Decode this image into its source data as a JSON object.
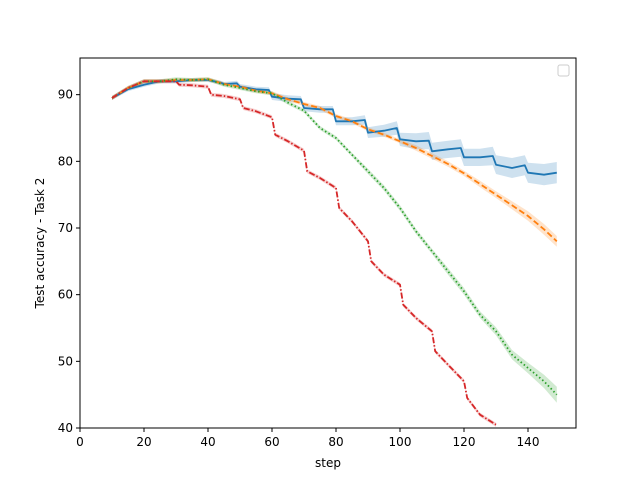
{
  "chart_data": {
    "type": "line",
    "title": "",
    "xlabel": "step",
    "ylabel": "Test accuracy - Task 2",
    "xlim": [
      0,
      155
    ],
    "ylim": [
      40,
      95.5
    ],
    "xticks": [
      0,
      20,
      40,
      60,
      80,
      100,
      120,
      140
    ],
    "yticks": [
      40,
      50,
      60,
      70,
      80,
      90
    ],
    "grid": false,
    "legend": {
      "position": "top-right",
      "entries": []
    },
    "series": [
      {
        "color": "#1f77b4",
        "dash": "solid",
        "x": [
          10,
          15,
          20,
          25,
          30,
          35,
          40,
          44,
          45,
          49,
          50,
          55,
          59,
          60,
          65,
          69,
          70,
          75,
          79,
          80,
          85,
          89,
          90,
          95,
          99,
          100,
          105,
          109,
          110,
          115,
          119,
          120,
          125,
          129,
          130,
          135,
          139,
          140,
          145,
          149
        ],
        "y": [
          89.5,
          90.8,
          91.5,
          92.0,
          92.0,
          92.2,
          92.2,
          91.8,
          91.6,
          91.7,
          91.2,
          90.8,
          90.7,
          89.7,
          89.4,
          89.3,
          88.0,
          87.8,
          87.8,
          86.0,
          86.0,
          86.2,
          84.3,
          84.6,
          85.0,
          83.3,
          83.0,
          83.1,
          81.5,
          81.8,
          82.0,
          80.6,
          80.6,
          80.8,
          79.5,
          79.0,
          79.4,
          78.3,
          78.0,
          78.3
        ],
        "band": [
          0.3,
          0.3,
          0.3,
          0.3,
          0.3,
          0.3,
          0.3,
          0.3,
          0.3,
          0.4,
          0.4,
          0.4,
          0.4,
          0.5,
          0.5,
          0.5,
          0.5,
          0.5,
          0.5,
          0.6,
          0.6,
          0.7,
          0.8,
          0.9,
          1.0,
          1.0,
          1.2,
          1.3,
          1.3,
          1.3,
          1.3,
          1.3,
          1.3,
          1.4,
          1.4,
          1.5,
          1.5,
          1.5,
          1.6,
          1.6
        ]
      },
      {
        "color": "#ff7f0e",
        "dash": "dashed",
        "x": [
          10,
          15,
          20,
          25,
          30,
          35,
          40,
          45,
          50,
          55,
          60,
          65,
          70,
          75,
          80,
          85,
          90,
          95,
          100,
          105,
          110,
          115,
          120,
          125,
          130,
          135,
          140,
          145,
          149
        ],
        "y": [
          89.5,
          91.0,
          92.0,
          92.0,
          92.2,
          92.2,
          92.3,
          91.6,
          91.2,
          90.6,
          90.2,
          89.3,
          88.6,
          88.0,
          86.8,
          86.0,
          84.8,
          84.0,
          83.0,
          82.0,
          80.8,
          79.6,
          78.2,
          76.6,
          75.0,
          73.4,
          71.8,
          69.8,
          68.0
        ],
        "band": [
          0.3,
          0.3,
          0.3,
          0.3,
          0.3,
          0.3,
          0.3,
          0.3,
          0.3,
          0.3,
          0.3,
          0.3,
          0.3,
          0.3,
          0.3,
          0.3,
          0.3,
          0.3,
          0.3,
          0.4,
          0.4,
          0.4,
          0.4,
          0.5,
          0.5,
          0.6,
          0.7,
          0.8,
          0.8
        ]
      },
      {
        "color": "#2ca02c",
        "dash": "dotted",
        "x": [
          10,
          15,
          20,
          25,
          30,
          35,
          40,
          45,
          50,
          55,
          60,
          65,
          70,
          75,
          80,
          85,
          90,
          95,
          100,
          105,
          110,
          115,
          120,
          125,
          130,
          135,
          140,
          145,
          149
        ],
        "y": [
          89.5,
          91.0,
          92.0,
          92.0,
          92.3,
          92.2,
          92.3,
          91.5,
          91.0,
          90.5,
          90.2,
          88.8,
          87.6,
          85.0,
          83.5,
          81.0,
          78.5,
          76.0,
          73.0,
          69.5,
          66.5,
          63.5,
          60.5,
          57.0,
          54.5,
          51.0,
          49.0,
          47.0,
          45.0
        ],
        "band": [
          0.3,
          0.3,
          0.3,
          0.3,
          0.3,
          0.3,
          0.3,
          0.3,
          0.3,
          0.3,
          0.3,
          0.3,
          0.3,
          0.3,
          0.3,
          0.3,
          0.4,
          0.4,
          0.4,
          0.4,
          0.4,
          0.5,
          0.5,
          0.5,
          0.6,
          0.7,
          0.8,
          1.0,
          1.2
        ]
      },
      {
        "color": "#d62728",
        "dash": "dashdot",
        "x": [
          10,
          15,
          20,
          25,
          30,
          31,
          35,
          40,
          41,
          45,
          50,
          51,
          55,
          60,
          61,
          65,
          70,
          71,
          75,
          80,
          81,
          85,
          90,
          91,
          95,
          100,
          101,
          105,
          110,
          111,
          115,
          120,
          121,
          125,
          130
        ],
        "y": [
          89.5,
          91.0,
          92.0,
          92.0,
          92.0,
          91.5,
          91.4,
          91.2,
          90.0,
          89.8,
          89.3,
          88.0,
          87.5,
          86.6,
          84.0,
          83.0,
          81.6,
          78.5,
          77.5,
          76.0,
          73.0,
          71.0,
          68.0,
          65.0,
          63.0,
          61.5,
          58.5,
          56.5,
          54.5,
          51.5,
          49.5,
          47.0,
          44.5,
          42.0,
          40.5
        ],
        "band": [
          0.3,
          0.3,
          0.3,
          0.3,
          0.3,
          0.3,
          0.3,
          0.3,
          0.3,
          0.3,
          0.3,
          0.3,
          0.3,
          0.3,
          0.3,
          0.3,
          0.3,
          0.3,
          0.3,
          0.3,
          0.3,
          0.3,
          0.3,
          0.3,
          0.3,
          0.3,
          0.3,
          0.3,
          0.3,
          0.3,
          0.3,
          0.3,
          0.3,
          0.3,
          0.3
        ]
      }
    ]
  }
}
